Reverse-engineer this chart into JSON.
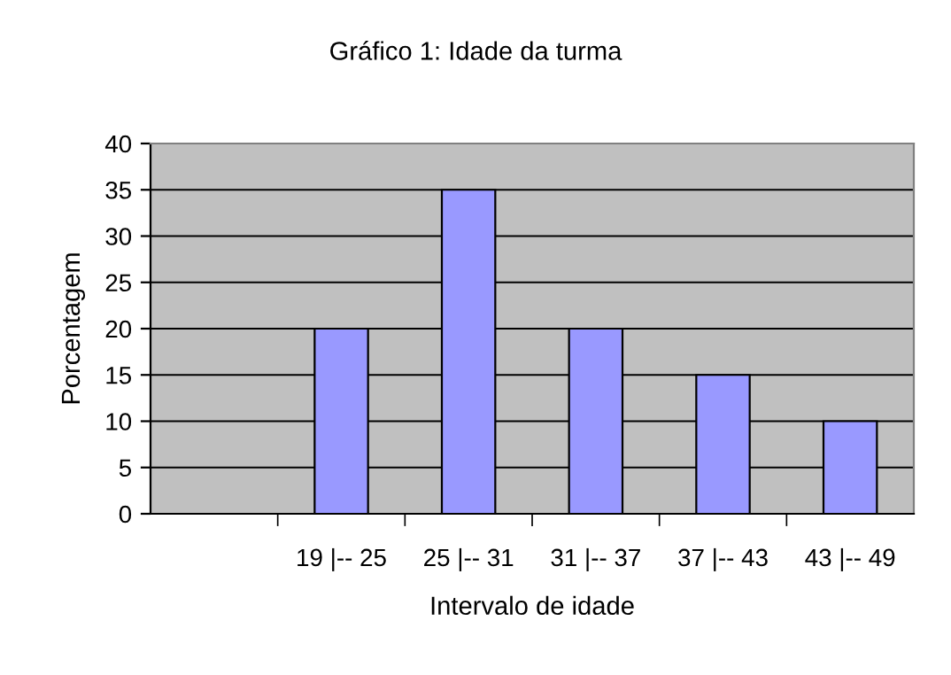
{
  "chart_data": {
    "type": "bar",
    "title": "Gráfico 1: Idade da turma",
    "xlabel": "Intervalo de idade",
    "ylabel": "Porcentagem",
    "categories": [
      null,
      "19 |-- 25",
      "25 |-- 31",
      "31 |-- 37",
      "37 |-- 43",
      "43 |-- 49"
    ],
    "values": [
      null,
      20,
      35,
      20,
      15,
      10
    ],
    "color": "#9999ff",
    "ylim": [
      0,
      40
    ],
    "yticks": [
      0,
      5,
      10,
      15,
      20,
      25,
      30,
      35,
      40
    ],
    "grid": "y"
  }
}
